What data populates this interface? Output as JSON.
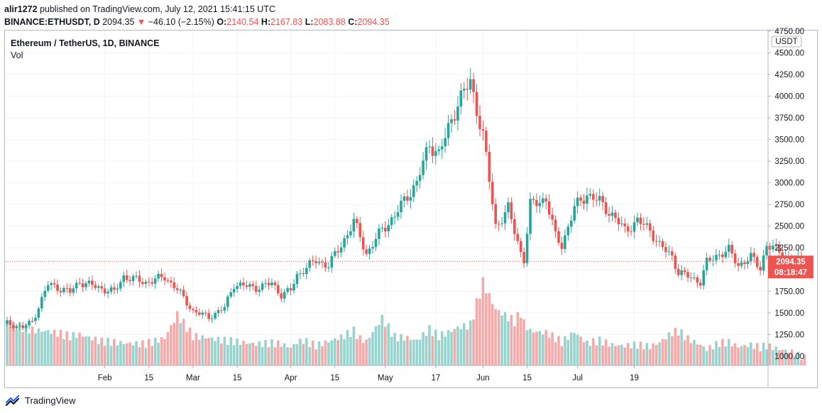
{
  "header": {
    "username": "alir1272",
    "published_text": "published on TradingView.com, July 12, 2021 15:41:15 UTC",
    "symbol_line": "BINANCE:ETHUSDT, D",
    "last": "2094.35",
    "change": "−46.10 (−2.15%)",
    "o_label": "O:",
    "o_value": "2140.54",
    "h_label": "H:",
    "h_value": "2167.83",
    "l_label": "L:",
    "l_value": "2083.88",
    "c_label": "C:",
    "c_value": "2094.35"
  },
  "legend": {
    "title": "Ethereum / TetherUS, 1D, BINANCE",
    "vol": "Vol"
  },
  "footer": {
    "brand": "TradingView"
  },
  "colors": {
    "up": "#26a69a",
    "down": "#ef5350",
    "up_vol": "#98d4cd",
    "down_vol": "#f5a9a9"
  },
  "chart_data": {
    "type": "candlestick",
    "currency": "USDT",
    "ylim": [
      893,
      4757
    ],
    "y_ticks": [
      "4750.00",
      "4500.00",
      "4250.00",
      "4000.00",
      "3750.00",
      "3500.00",
      "3250.00",
      "3000.00",
      "2750.00",
      "2500.00",
      "2250.00",
      "2000.00",
      "1750.00",
      "1500.00",
      "1250.00",
      "1000.00"
    ],
    "y_tick_values": [
      4750,
      4500,
      4250,
      4000,
      3750,
      3500,
      3250,
      3000,
      2750,
      2500,
      2250,
      2000,
      1750,
      1500,
      1250,
      1000
    ],
    "x_ticks": [
      "Feb",
      "15",
      "Mar",
      "15",
      "Apr",
      "15",
      "May",
      "17",
      "Jun",
      "15",
      "Jul",
      "19"
    ],
    "x_tick_days": [
      32,
      46,
      60,
      74,
      91,
      105,
      121,
      137,
      152,
      166,
      182,
      200
    ],
    "last_price": "2094.35",
    "countdown": "08:18:47",
    "first_day": 1,
    "keypoints": [
      [
        1,
        1380
      ],
      [
        6,
        1330
      ],
      [
        9,
        1400
      ],
      [
        14,
        1830
      ],
      [
        21,
        1740
      ],
      [
        24,
        1860
      ],
      [
        31,
        1780
      ],
      [
        35,
        1740
      ],
      [
        38,
        1920
      ],
      [
        45,
        1850
      ],
      [
        51,
        1915
      ],
      [
        55,
        1770
      ],
      [
        60,
        1520
      ],
      [
        65,
        1450
      ],
      [
        70,
        1560
      ],
      [
        73,
        1830
      ],
      [
        80,
        1790
      ],
      [
        85,
        1840
      ],
      [
        88,
        1710
      ],
      [
        91,
        1760
      ],
      [
        93,
        1930
      ],
      [
        95,
        2000
      ],
      [
        99,
        2100
      ],
      [
        103,
        2050
      ],
      [
        107,
        2280
      ],
      [
        111,
        2550
      ],
      [
        113,
        2380
      ],
      [
        115,
        2180
      ],
      [
        120,
        2460
      ],
      [
        124,
        2620
      ],
      [
        128,
        2850
      ],
      [
        131,
        3000
      ],
      [
        135,
        3450
      ],
      [
        138,
        3330
      ],
      [
        140,
        3520
      ],
      [
        144,
        3930
      ],
      [
        148,
        4160
      ],
      [
        152,
        3550
      ],
      [
        156,
        2500
      ],
      [
        160,
        2700
      ],
      [
        162,
        2440
      ],
      [
        164,
        2200
      ],
      [
        165,
        2120
      ],
      [
        167,
        2740
      ],
      [
        172,
        2820
      ],
      [
        175,
        2380
      ],
      [
        177,
        2280
      ],
      [
        181,
        2710
      ],
      [
        185,
        2870
      ],
      [
        189,
        2780
      ],
      [
        193,
        2630
      ],
      [
        197,
        2450
      ],
      [
        201,
        2560
      ],
      [
        205,
        2460
      ],
      [
        208,
        2280
      ],
      [
        212,
        2150
      ],
      [
        214,
        1970
      ],
      [
        217,
        1920
      ],
      [
        221,
        1860
      ],
      [
        223,
        2080
      ],
      [
        227,
        2180
      ],
      [
        230,
        2220
      ],
      [
        233,
        2050
      ],
      [
        237,
        2140
      ],
      [
        240,
        2020
      ],
      [
        242,
        2280
      ],
      [
        246,
        2210
      ],
      [
        250,
        2110
      ],
      [
        254,
        2094
      ]
    ],
    "volumes": [
      [
        1,
        1380
      ],
      [
        6,
        1330
      ],
      [
        9,
        1300
      ],
      [
        14,
        1290
      ],
      [
        21,
        1230
      ],
      [
        24,
        1250
      ],
      [
        31,
        1170
      ],
      [
        35,
        1160
      ],
      [
        38,
        1150
      ],
      [
        45,
        1140
      ],
      [
        51,
        1210
      ],
      [
        55,
        1480
      ],
      [
        60,
        1230
      ],
      [
        65,
        1210
      ],
      [
        70,
        1180
      ],
      [
        73,
        1170
      ],
      [
        80,
        1140
      ],
      [
        85,
        1150
      ],
      [
        88,
        1140
      ],
      [
        91,
        1100
      ],
      [
        93,
        1160
      ],
      [
        95,
        1180
      ],
      [
        99,
        1120
      ],
      [
        103,
        1170
      ],
      [
        107,
        1220
      ],
      [
        111,
        1290
      ],
      [
        113,
        1200
      ],
      [
        115,
        1170
      ],
      [
        120,
        1440
      ],
      [
        124,
        1220
      ],
      [
        128,
        1210
      ],
      [
        131,
        1180
      ],
      [
        135,
        1310
      ],
      [
        138,
        1230
      ],
      [
        140,
        1260
      ],
      [
        144,
        1330
      ],
      [
        148,
        1360
      ],
      [
        152,
        1850
      ],
      [
        156,
        1540
      ],
      [
        160,
        1450
      ],
      [
        162,
        1400
      ],
      [
        164,
        1500
      ],
      [
        165,
        1380
      ],
      [
        167,
        1290
      ],
      [
        172,
        1270
      ],
      [
        175,
        1210
      ],
      [
        177,
        1160
      ],
      [
        181,
        1280
      ],
      [
        185,
        1150
      ],
      [
        189,
        1180
      ],
      [
        193,
        1130
      ],
      [
        197,
        1120
      ],
      [
        201,
        1130
      ],
      [
        205,
        1110
      ],
      [
        208,
        1160
      ],
      [
        212,
        1270
      ],
      [
        214,
        1290
      ],
      [
        217,
        1200
      ],
      [
        221,
        1130
      ],
      [
        223,
        1080
      ],
      [
        227,
        1150
      ],
      [
        230,
        1160
      ],
      [
        233,
        1110
      ],
      [
        237,
        1130
      ],
      [
        240,
        1100
      ],
      [
        242,
        1120
      ],
      [
        246,
        1080
      ],
      [
        250,
        1050
      ],
      [
        254,
        980
      ]
    ]
  }
}
